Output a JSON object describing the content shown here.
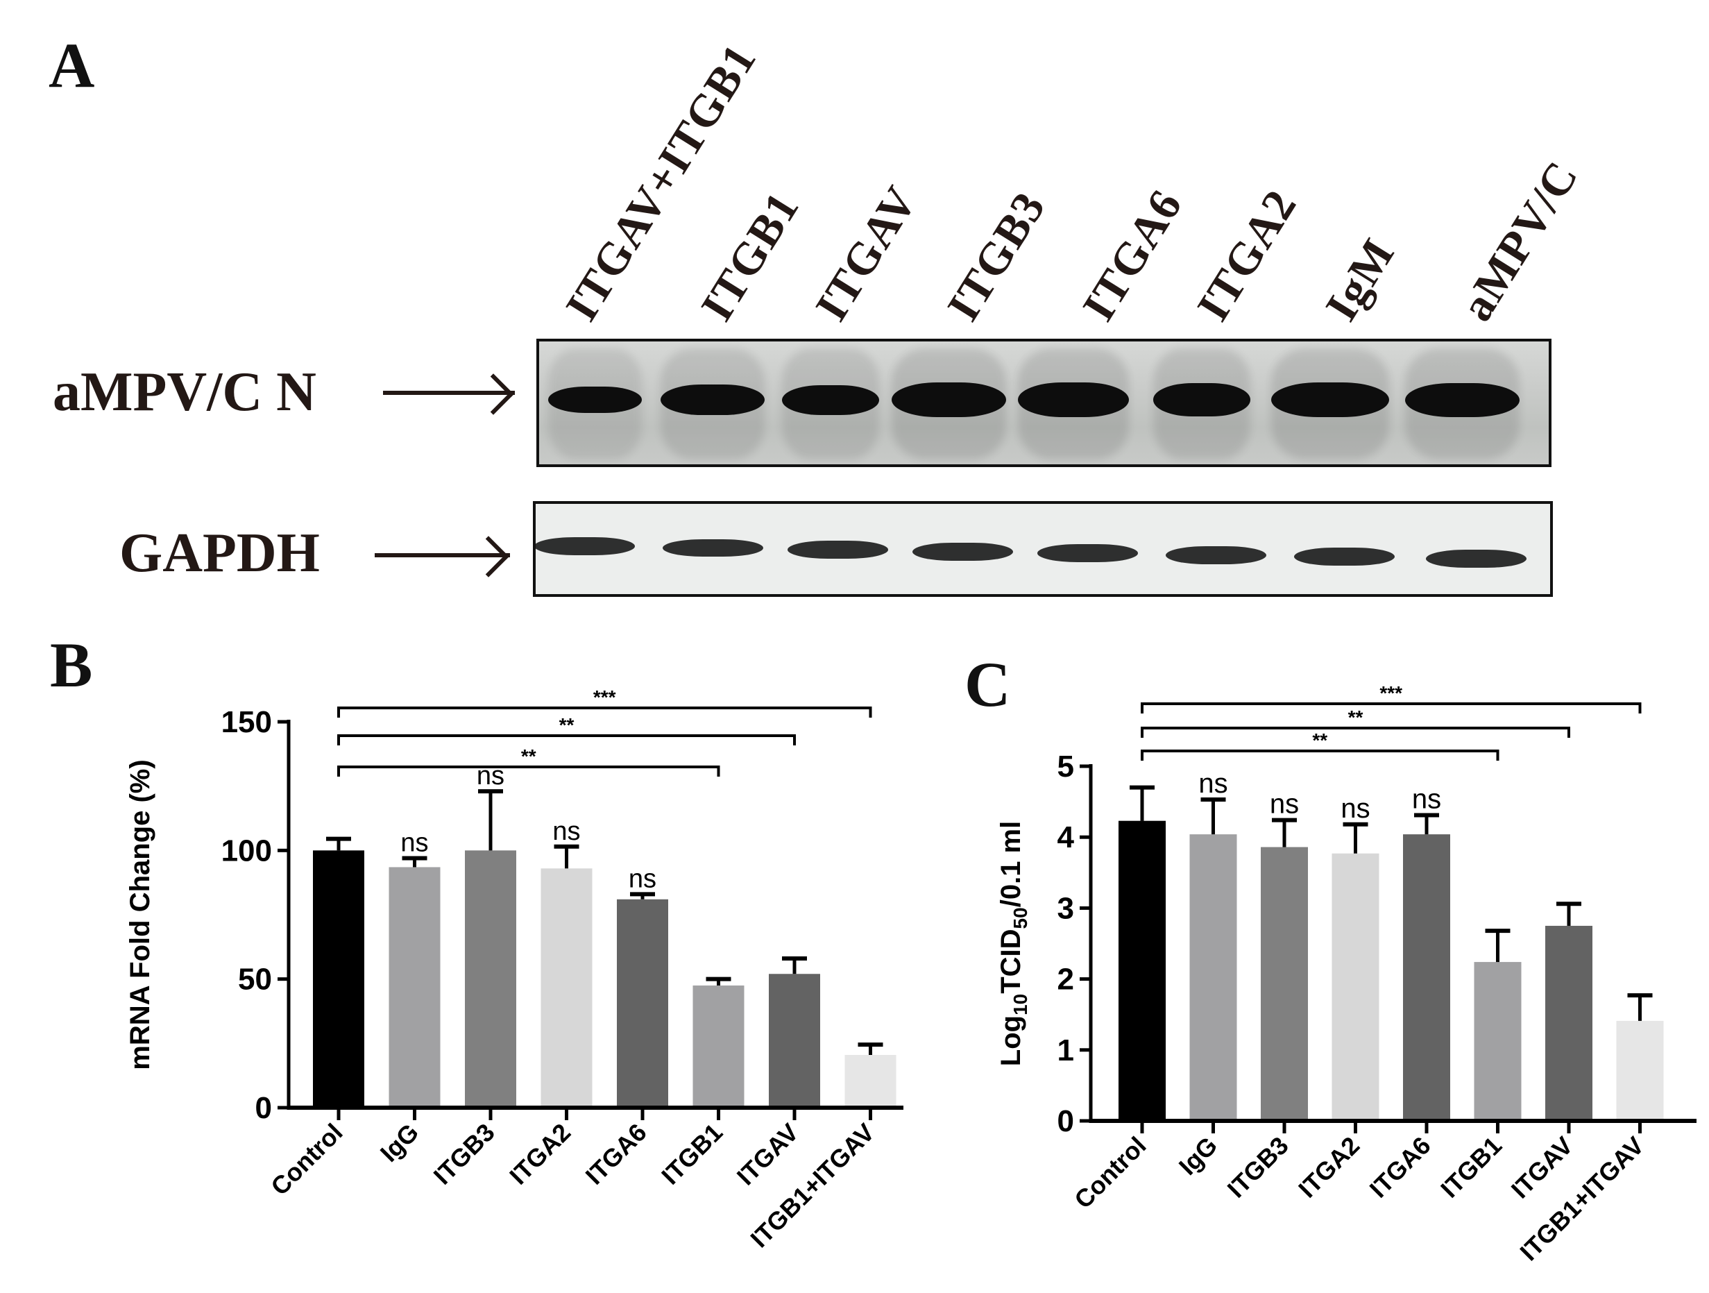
{
  "figure": {
    "panel_labels": {
      "a": "A",
      "b": "B",
      "c": "C"
    }
  },
  "western_blot": {
    "lanes": [
      "ITGAV+ITGB1",
      "ITGB1",
      "ITGAV",
      "ITGB3",
      "ITGA6",
      "ITGA2",
      "IgM",
      "aMPV/C"
    ],
    "rows": [
      {
        "label": "aMPV/C N",
        "band_intensity": [
          0.55,
          0.75,
          0.7,
          0.95,
          0.95,
          0.85,
          0.95,
          0.9
        ]
      },
      {
        "label": "GAPDH",
        "band_intensity": [
          0.7,
          0.65,
          0.7,
          0.75,
          0.7,
          0.72,
          0.72,
          0.75
        ]
      }
    ]
  },
  "chart_data": [
    {
      "panel": "B",
      "type": "bar",
      "title": "",
      "xlabel": "",
      "ylabel": "mRNA Fold Change (%)",
      "categories": [
        "Control",
        "IgG",
        "ITGB3",
        "ITGA2",
        "ITGA6",
        "ITGB1",
        "ITGAV",
        "ITGB1+ITGAV"
      ],
      "values": [
        100,
        93.5,
        100,
        93,
        81,
        47.5,
        52,
        20.5
      ],
      "error_upper": [
        104.5,
        97,
        123,
        101.5,
        83,
        50,
        58,
        24.5
      ],
      "colors": [
        "#000000",
        "#a1a1a3",
        "#808080",
        "#d7d7d7",
        "#636363",
        "#a1a1a3",
        "#636363",
        "#e6e6e6"
      ],
      "ylim": [
        0,
        150
      ],
      "yticks": [
        0,
        50,
        100,
        150
      ],
      "grid": false,
      "legend": null,
      "annotations": [
        {
          "text": "ns",
          "category": "IgG"
        },
        {
          "text": "ns",
          "category": "ITGB3"
        },
        {
          "text": "ns",
          "category": "ITGA2"
        },
        {
          "text": "ns",
          "category": "ITGA6"
        }
      ],
      "brackets": [
        {
          "from": "Control",
          "to": "ITGB1",
          "text": "**"
        },
        {
          "from": "Control",
          "to": "ITGAV",
          "text": "**"
        },
        {
          "from": "Control",
          "to": "ITGB1+ITGAV",
          "text": "***"
        }
      ]
    },
    {
      "panel": "C",
      "type": "bar",
      "title": "",
      "xlabel": "",
      "ylabel": "Log10TCID50/0.1 ml",
      "ylabel_parts": {
        "pre": "Log",
        "sub1": "10",
        "mid": "TCID",
        "sub2": "50",
        "post": "/0.1 ml"
      },
      "categories": [
        "Control",
        "IgG",
        "ITGB3",
        "ITGA2",
        "ITGA6",
        "ITGB1",
        "ITGAV",
        "ITGB1+ITGAV"
      ],
      "values": [
        4.23,
        4.04,
        3.86,
        3.77,
        4.04,
        2.24,
        2.75,
        1.41
      ],
      "error_upper": [
        4.7,
        4.53,
        4.24,
        4.18,
        4.31,
        2.68,
        3.06,
        1.77
      ],
      "colors": [
        "#000000",
        "#a1a1a3",
        "#808080",
        "#d7d7d7",
        "#636363",
        "#a1a1a3",
        "#636363",
        "#e6e6e6"
      ],
      "ylim": [
        0,
        5
      ],
      "yticks": [
        0,
        1,
        2,
        3,
        4,
        5
      ],
      "grid": false,
      "legend": null,
      "annotations": [
        {
          "text": "ns",
          "category": "IgG"
        },
        {
          "text": "ns",
          "category": "ITGB3"
        },
        {
          "text": "ns",
          "category": "ITGA2"
        },
        {
          "text": "ns",
          "category": "ITGA6"
        }
      ],
      "brackets": [
        {
          "from": "Control",
          "to": "ITGB1",
          "text": "**"
        },
        {
          "from": "Control",
          "to": "ITGAV",
          "text": "**"
        },
        {
          "from": "Control",
          "to": "ITGB1+ITGAV",
          "text": "***"
        }
      ]
    }
  ]
}
